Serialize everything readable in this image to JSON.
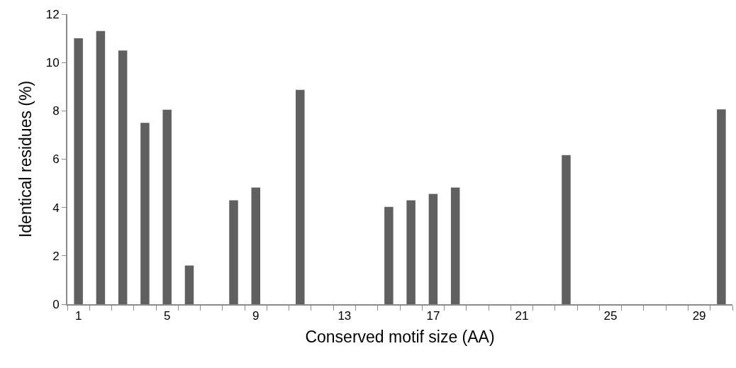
{
  "chart_data": {
    "type": "bar",
    "xlabel": "Conserved motif size (AA)",
    "ylabel": "Identical residues (%)",
    "categories": [
      "1",
      null,
      null,
      null,
      "5",
      null,
      null,
      null,
      "9",
      null,
      null,
      null,
      "13",
      null,
      null,
      null,
      "17",
      null,
      null,
      null,
      "21",
      null,
      null,
      null,
      "25",
      null,
      null,
      null,
      "29",
      null
    ],
    "values": [
      11.0,
      11.3,
      10.5,
      7.5,
      8.05,
      1.6,
      0,
      4.3,
      4.83,
      0,
      8.87,
      0,
      0,
      0,
      4.03,
      4.3,
      4.56,
      4.83,
      0,
      0,
      0,
      0,
      6.17,
      0,
      0,
      0,
      0,
      0,
      0,
      8.06
    ],
    "color": "#606060",
    "ylim": [
      0,
      12
    ],
    "yticks": [
      0,
      2,
      4,
      6,
      8,
      10,
      12
    ]
  }
}
